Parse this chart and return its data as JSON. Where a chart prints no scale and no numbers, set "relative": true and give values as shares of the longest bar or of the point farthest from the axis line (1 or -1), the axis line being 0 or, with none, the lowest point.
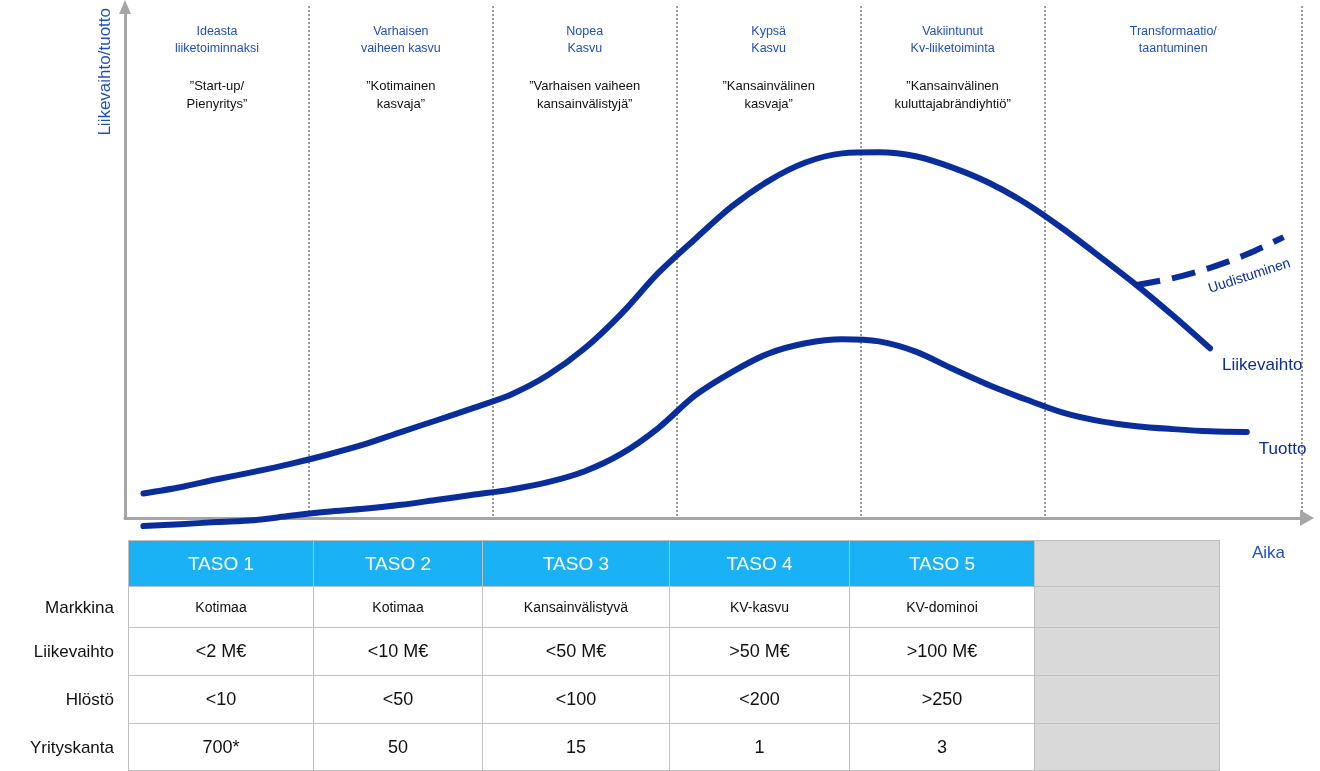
{
  "chart_data": [
    {
      "type": "line",
      "relative": true,
      "ylabel": "Liikevaihto/tuotto",
      "xlabel": "Aika",
      "grid": "x",
      "marker": "none",
      "categories": [
        null,
        null,
        "Ideasta\nliiketoiminnaksi",
        null,
        null,
        null,
        null,
        "Varhaisen\nvaiheen kasvu",
        null,
        null,
        null,
        null,
        "Nopea\nKasvu",
        null,
        null,
        null,
        null,
        "Kypsä\nKasvu",
        null,
        null,
        null,
        null,
        "Vakiintunut\nKv-liiketoiminta",
        null,
        null,
        null,
        null,
        null,
        "Transformaatio/\ntaantuminen",
        null,
        null,
        null
      ],
      "series": [
        {
          "name": "Liikevaihto",
          "color": "#0a2d9c",
          "line_style": "solid",
          "values": [
            0.067,
            0.084,
            0.106,
            0.126,
            0.148,
            0.173,
            0.201,
            0.235,
            0.268,
            0.302,
            0.338,
            0.391,
            0.464,
            0.559,
            0.67,
            0.763,
            0.852,
            0.922,
            0.972,
            0.997,
            1,
            0.989,
            0.958,
            0.916,
            0.86,
            0.791,
            0.715,
            0.637,
            0.553,
            0.464,
            null,
            null
          ]
        },
        {
          "name": "Tuotto",
          "color": "#0a2d9c",
          "line_style": "solid",
          "values": [
            -0.022,
            -0.017,
            -0.011,
            -0.006,
            0.006,
            0.017,
            0.025,
            0.036,
            0.05,
            0.064,
            0.078,
            0.098,
            0.128,
            0.176,
            0.246,
            0.335,
            0.399,
            0.45,
            0.478,
            0.489,
            0.483,
            0.455,
            0.408,
            0.363,
            0.324,
            0.288,
            0.265,
            0.251,
            0.243,
            0.237,
            0.235,
            null
          ]
        },
        {
          "name": "Uudistuminen",
          "color": "#0a2d9c",
          "line_style": "dashed",
          "values": [
            null,
            null,
            null,
            null,
            null,
            null,
            null,
            null,
            null,
            null,
            null,
            null,
            null,
            null,
            null,
            null,
            null,
            null,
            null,
            null,
            null,
            null,
            null,
            null,
            null,
            null,
            null,
            0.637,
            0.656,
            0.684,
            0.721,
            0.768
          ]
        }
      ],
      "annotations": [
        "”Start-up/\nPienyritys”",
        "”Kotimainen\nkasvaja”",
        "”Varhaisen vaiheen\nkansainvälistyjä”",
        "”Kansainvälinen\nkasvaja”",
        "”Kansainvälinen\nkuluttajabrändiyhtiö”"
      ]
    },
    {
      "type": "other",
      "categories": [
        "TASO 1",
        "TASO 2",
        "TASO 3",
        "TASO 4",
        "TASO 5",
        null
      ],
      "y_categories": [
        "Markkina",
        "Liikevaihto",
        "Hlöstö",
        "Yrityskanta"
      ],
      "cell_labels": [
        [
          "Kotimaa",
          "Kotimaa",
          "Kansainvälistyvä",
          "KV-kasvu",
          "KV-dominoi",
          null
        ],
        [
          "<2 M€",
          "<10 M€",
          "<50 M€",
          ">50 M€",
          ">100 M€",
          null
        ],
        [
          "<10",
          "<50",
          "<100",
          "<200",
          ">250",
          null
        ],
        [
          "700*",
          "50",
          "15",
          "1",
          "3",
          null
        ]
      ]
    }
  ]
}
